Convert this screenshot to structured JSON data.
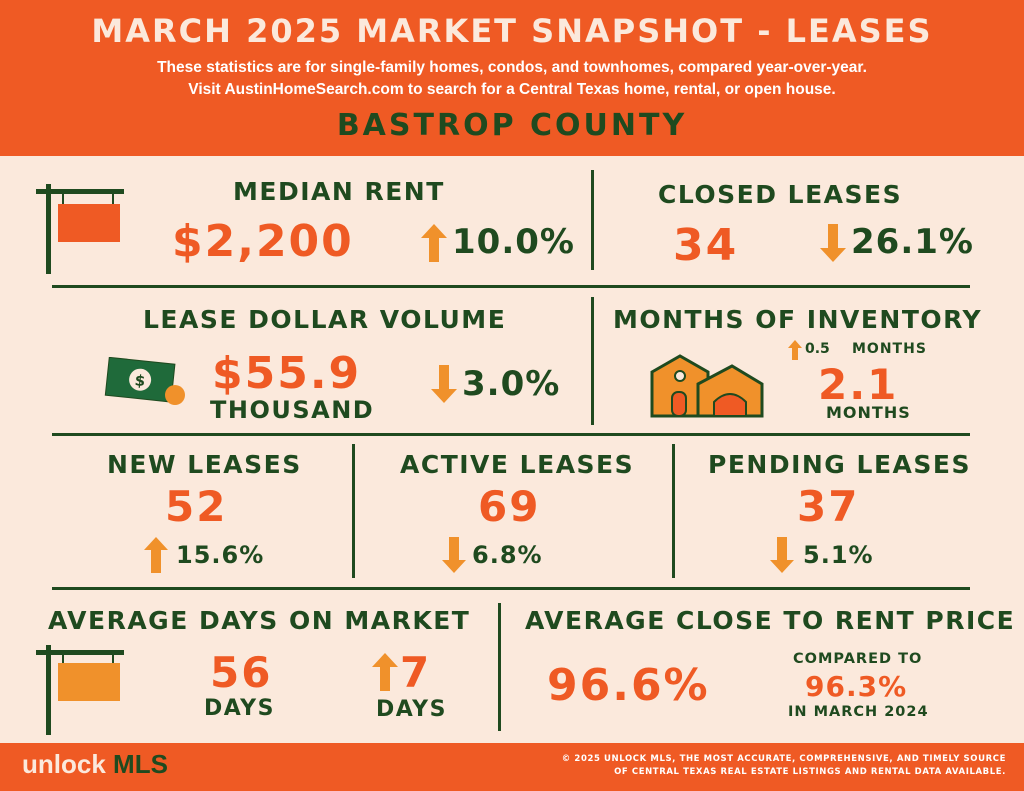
{
  "header": {
    "title": "MARCH 2025 MARKET SNAPSHOT - LEASES",
    "subtitle_line1": "These statistics are for single-family homes, condos, and townhomes, compared year-over-year.",
    "subtitle_line2": "Visit AustinHomeSearch.com to search for a Central Texas home, rental, or open house.",
    "county": "BASTROP COUNTY"
  },
  "median_rent": {
    "label": "MEDIAN RENT",
    "value": "$2,200",
    "change": "10.0%",
    "direction": "up"
  },
  "closed_leases": {
    "label": "CLOSED LEASES",
    "value": "34",
    "change": "26.1%",
    "direction": "down"
  },
  "lease_volume": {
    "label": "LEASE DOLLAR VOLUME",
    "value": "$55.9",
    "unit": "THOUSAND",
    "change": "3.0%",
    "direction": "down",
    "money_symbol": "$"
  },
  "months_inventory": {
    "label": "MONTHS OF INVENTORY",
    "change": "0.5",
    "change_unit": "MONTHS",
    "direction": "up",
    "value": "2.1",
    "unit": "MONTHS"
  },
  "new_leases": {
    "label": "NEW LEASES",
    "value": "52",
    "change": "15.6%",
    "direction": "up"
  },
  "active_leases": {
    "label": "ACTIVE LEASES",
    "value": "69",
    "change": "6.8%",
    "direction": "down"
  },
  "pending_leases": {
    "label": "PENDING LEASES",
    "value": "37",
    "change": "5.1%",
    "direction": "down"
  },
  "avg_dom": {
    "label": "AVERAGE DAYS ON MARKET",
    "value": "56",
    "unit": "DAYS",
    "change": "7",
    "change_unit": "DAYS",
    "direction": "up"
  },
  "close_to_rent": {
    "label": "AVERAGE CLOSE TO RENT PRICE",
    "value": "96.6%",
    "compared_label": "COMPARED TO",
    "compared_value": "96.3%",
    "compared_period": "IN MARCH 2024"
  },
  "footer": {
    "logo_unlock": "unlock",
    "logo_mls": "MLS",
    "copyright_line1": "© 2025 UNLOCK MLS, THE MOST ACCURATE, COMPREHENSIVE, AND TIMELY SOURCE",
    "copyright_line2": "OF CENTRAL TEXAS REAL ESTATE LISTINGS AND RENTAL DATA AVAILABLE."
  },
  "colors": {
    "orange": "#ef5a24",
    "green": "#1f4a1f",
    "amber": "#f0912b",
    "cream": "#fbe9dc"
  },
  "icons": [
    "hanging-sign-icon",
    "up-arrow-icon",
    "down-arrow-icon",
    "money-bill-icon",
    "houses-icon"
  ]
}
